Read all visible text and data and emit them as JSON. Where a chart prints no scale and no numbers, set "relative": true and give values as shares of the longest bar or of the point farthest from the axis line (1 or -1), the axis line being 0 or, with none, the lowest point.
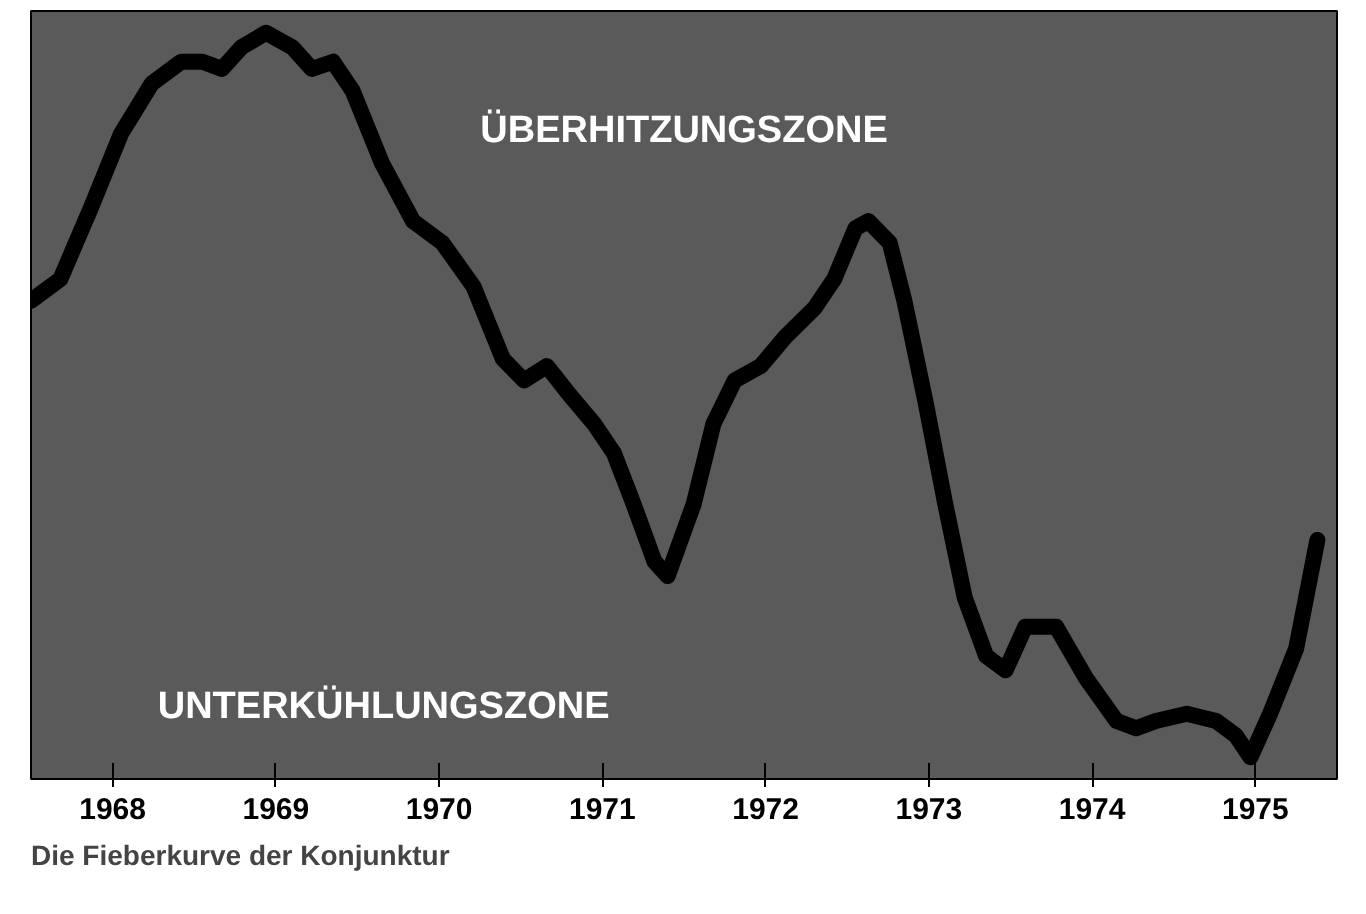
{
  "chart_data": {
    "type": "line",
    "title": "Die Fieberkurve der Konjunktur",
    "relative": true,
    "x": [
      1968.0,
      1968.18,
      1968.37,
      1968.55,
      1968.74,
      1968.92,
      1969.05,
      1969.17,
      1969.29,
      1969.44,
      1969.6,
      1969.72,
      1969.85,
      1969.97,
      1970.15,
      1970.34,
      1970.52,
      1970.71,
      1970.89,
      1971.02,
      1971.16,
      1971.3,
      1971.45,
      1971.57,
      1971.69,
      1971.82,
      1971.9,
      1972.06,
      1972.18,
      1972.31,
      1972.47,
      1972.62,
      1972.8,
      1972.92,
      1973.05,
      1973.13,
      1973.26,
      1973.35,
      1973.48,
      1973.6,
      1973.72,
      1973.85,
      1973.97,
      1974.09,
      1974.28,
      1974.46,
      1974.65,
      1974.77,
      1974.89,
      1975.08,
      1975.26,
      1975.38,
      1975.47,
      1975.59,
      1975.75,
      1975.88
    ],
    "series": [
      {
        "color": "#000000",
        "values": [
          0.63,
          0.66,
          0.76,
          0.86,
          0.93,
          0.96,
          0.96,
          0.95,
          0.98,
          1.0,
          0.98,
          0.95,
          0.96,
          0.92,
          0.82,
          0.74,
          0.71,
          0.65,
          0.55,
          0.52,
          0.54,
          0.5,
          0.46,
          0.42,
          0.35,
          0.27,
          0.25,
          0.35,
          0.46,
          0.52,
          0.54,
          0.58,
          0.62,
          0.66,
          0.73,
          0.74,
          0.71,
          0.63,
          0.49,
          0.35,
          0.22,
          0.14,
          0.12,
          0.18,
          0.18,
          0.11,
          0.05,
          0.04,
          0.05,
          0.06,
          0.05,
          0.03,
          0.0,
          0.06,
          0.15,
          0.3
        ]
      }
    ],
    "xlim": [
      1968,
      1976
    ],
    "xticks": [
      {
        "value": 1968.5,
        "label": "1968"
      },
      {
        "value": 1969.5,
        "label": "1969"
      },
      {
        "value": 1970.5,
        "label": "1970"
      },
      {
        "value": 1971.5,
        "label": "1971"
      },
      {
        "value": 1972.5,
        "label": "1972"
      },
      {
        "value": 1973.5,
        "label": "1973"
      },
      {
        "value": 1974.5,
        "label": "1974"
      },
      {
        "value": 1975.5,
        "label": "1975"
      }
    ],
    "annotations": [
      "ÜBERHITZUNGSZONE",
      "UNTERKÜHLUNGSZONE"
    ],
    "grid": false,
    "marker": "none",
    "line_style": "solid"
  }
}
